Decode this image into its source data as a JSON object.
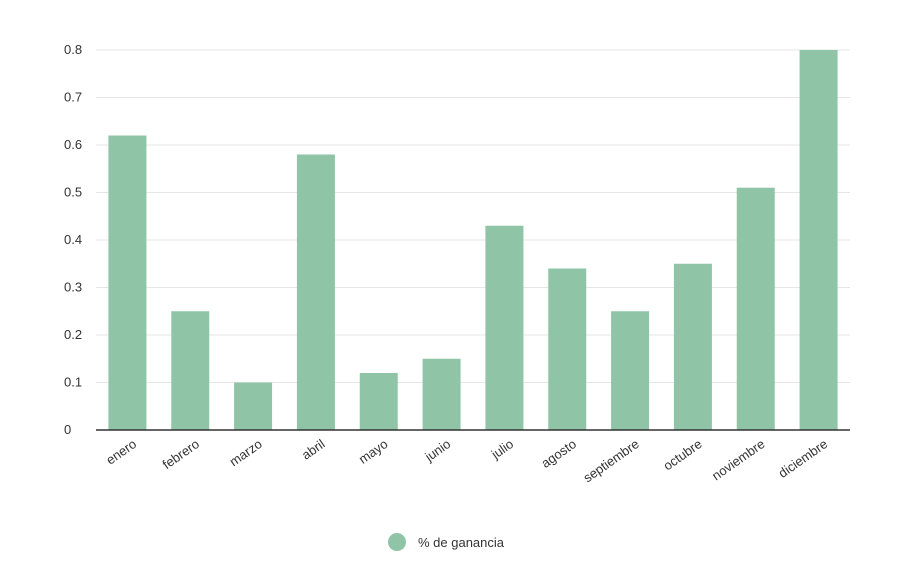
{
  "chart_data": {
    "type": "bar",
    "title": "",
    "xlabel": "",
    "ylabel": "",
    "categories": [
      "enero",
      "febrero",
      "marzo",
      "abril",
      "mayo",
      "junio",
      "julio",
      "agosto",
      "septiembre",
      "octubre",
      "noviembre",
      "diciembre"
    ],
    "series": [
      {
        "name": "% de ganancia",
        "values": [
          0.62,
          0.25,
          0.1,
          0.58,
          0.12,
          0.15,
          0.43,
          0.34,
          0.25,
          0.35,
          0.51,
          0.8
        ],
        "color": "#8fc5a6"
      }
    ],
    "ylim": [
      0,
      0.8
    ],
    "yticks": [
      "0",
      "0.1",
      "0.2",
      "0.3",
      "0.4",
      "0.5",
      "0.6",
      "0.7",
      "0.8"
    ],
    "grid": true,
    "legend_position": "bottom-center"
  }
}
